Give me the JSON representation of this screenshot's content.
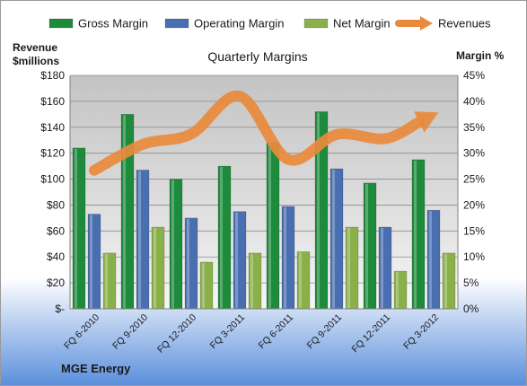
{
  "chart_data": {
    "type": "bar",
    "title": "Quarterly Margins",
    "categories": [
      "FQ 6-2010",
      "FQ 9-2010",
      "FQ 12-2010",
      "FQ 3-2011",
      "FQ 6-2011",
      "FQ 9-2011",
      "FQ 12-2011",
      "FQ 3-2012"
    ],
    "series": [
      {
        "name": "Gross Margin",
        "axis": "left",
        "kind": "bar",
        "color": "#1e8a3c",
        "values": [
          124,
          150,
          100,
          110,
          128,
          152,
          97,
          115
        ]
      },
      {
        "name": "Operating Margin",
        "axis": "left",
        "kind": "bar",
        "color": "#4a6fb0",
        "values": [
          73,
          107,
          70,
          75,
          79,
          108,
          63,
          76
        ]
      },
      {
        "name": "Net Margin",
        "axis": "left",
        "kind": "bar",
        "color": "#8ab04a",
        "values": [
          43,
          63,
          36,
          43,
          44,
          63,
          29,
          43
        ]
      },
      {
        "name": "Revenues",
        "axis": "right",
        "kind": "line",
        "color": "#e98a3c",
        "values": [
          26.7,
          31.7,
          33.7,
          41,
          28.8,
          33.6,
          32.8,
          37.4
        ]
      }
    ],
    "y_left": {
      "label_line1": "Revenue",
      "label_line2": "$millions",
      "min": 0,
      "max": 180,
      "step": 20,
      "tick_labels": [
        "$-",
        "$20",
        "$40",
        "$60",
        "$80",
        "$100",
        "$120",
        "$140",
        "$160",
        "$180"
      ]
    },
    "y_right": {
      "label": "Margin %",
      "min": 0,
      "max": 45,
      "step": 5,
      "tick_labels": [
        "0%",
        "5%",
        "10%",
        "15%",
        "20%",
        "25%",
        "30%",
        "35%",
        "40%",
        "45%"
      ]
    },
    "grid": true,
    "legend_position": "top",
    "footer": "MGE Energy"
  }
}
